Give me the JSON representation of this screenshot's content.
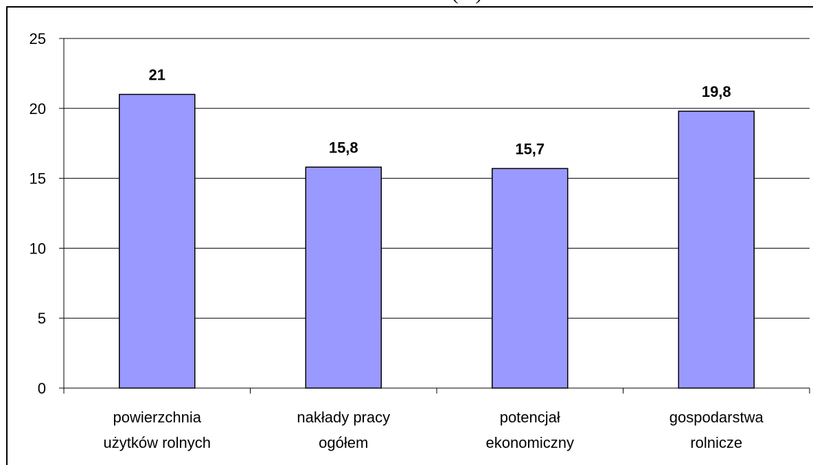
{
  "chart_title_fragment": "(%)",
  "chart_data": {
    "type": "bar",
    "categories": [
      [
        "powierzchnia",
        "użytków rolnych"
      ],
      [
        "nakłady pracy",
        "ogółem"
      ],
      [
        "potencjał",
        "ekonomiczny"
      ],
      [
        "gospodarstwa",
        "rolnicze"
      ]
    ],
    "values": [
      21,
      15.8,
      15.7,
      19.8
    ],
    "data_labels": [
      "21",
      "15,8",
      "15,7",
      "19,8"
    ],
    "ylim": [
      0,
      25
    ],
    "yticks": [
      0,
      5,
      10,
      15,
      20,
      25
    ],
    "grid": true,
    "legend": "none",
    "bar_color": "#9999ff",
    "bar_stroke": "#000000"
  }
}
